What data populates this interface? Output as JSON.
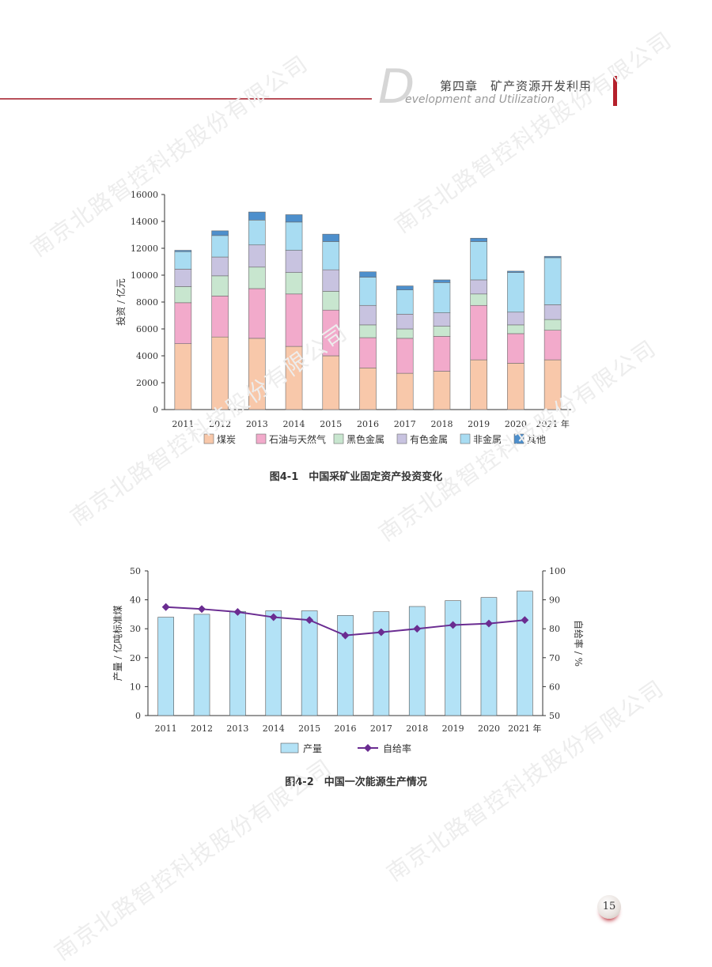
{
  "header": {
    "big_letter": "D",
    "english": "evelopment and Utilization",
    "chinese": "第四章　矿产资源开发利用"
  },
  "watermark_text": "南京北路智控科技股份有限公司",
  "chart_data": [
    {
      "type": "bar",
      "stacked": true,
      "title": "图4-1　中国采矿业固定资产投资变化",
      "ylabel": "投资 / 亿元",
      "xlabel": "",
      "categories": [
        "2011",
        "2012",
        "2013",
        "2014",
        "2015",
        "2016",
        "2017",
        "2018",
        "2019",
        "2020",
        "2021 年"
      ],
      "ylim": [
        0,
        16000
      ],
      "yticks": [
        0,
        2000,
        4000,
        6000,
        8000,
        10000,
        12000,
        14000,
        16000
      ],
      "series": [
        {
          "name": "煤炭",
          "color": "#f8c8aa",
          "values": [
            4900,
            5400,
            5300,
            4700,
            4000,
            3100,
            2700,
            2850,
            3700,
            3450,
            3700
          ]
        },
        {
          "name": "石油与天然气",
          "color": "#f2aacb",
          "values": [
            3050,
            3050,
            3700,
            3900,
            3400,
            2250,
            2600,
            2600,
            4050,
            2200,
            2200
          ]
        },
        {
          "name": "黑色金属",
          "color": "#c8e6cf",
          "values": [
            1200,
            1500,
            1600,
            1600,
            1400,
            950,
            700,
            750,
            850,
            650,
            800
          ]
        },
        {
          "name": "有色金属",
          "color": "#c8c3e0",
          "values": [
            1300,
            1400,
            1650,
            1650,
            1600,
            1450,
            1100,
            1000,
            1050,
            950,
            1100
          ]
        },
        {
          "name": "非金属",
          "color": "#a8dcf2",
          "values": [
            1300,
            1600,
            1850,
            2100,
            2100,
            2100,
            1800,
            2250,
            2850,
            2950,
            3500
          ]
        },
        {
          "name": "其他",
          "color": "#4d8fcc",
          "values": [
            100,
            350,
            600,
            550,
            550,
            400,
            300,
            200,
            250,
            100,
            100
          ]
        }
      ],
      "legend": "bottom"
    },
    {
      "type": "bar+line",
      "title": "图4-2　中国一次能源生产情况",
      "ylabel": "产量 / 亿吨标准煤",
      "y2label": "自给率 / %",
      "categories": [
        "2011",
        "2012",
        "2013",
        "2014",
        "2015",
        "2016",
        "2017",
        "2018",
        "2019",
        "2020",
        "2021 年"
      ],
      "ylim": [
        0,
        50
      ],
      "yticks": [
        0,
        10,
        20,
        30,
        40,
        50
      ],
      "y2lim": [
        50,
        100
      ],
      "y2ticks": [
        50,
        60,
        70,
        80,
        90,
        100
      ],
      "series": [
        {
          "name": "产量",
          "type": "bar",
          "axis": "left",
          "color": "#b3e2f6",
          "values": [
            34,
            35,
            36,
            36.2,
            36.2,
            34.6,
            35.9,
            37.7,
            39.7,
            40.8,
            43
          ]
        },
        {
          "name": "自给率",
          "type": "line",
          "axis": "right",
          "color": "#6a2c91",
          "values": [
            87.5,
            86.8,
            85.8,
            84,
            83,
            77.7,
            78.8,
            80,
            81.3,
            81.8,
            83
          ]
        }
      ],
      "legend": "bottom"
    }
  ],
  "page_number": "15"
}
